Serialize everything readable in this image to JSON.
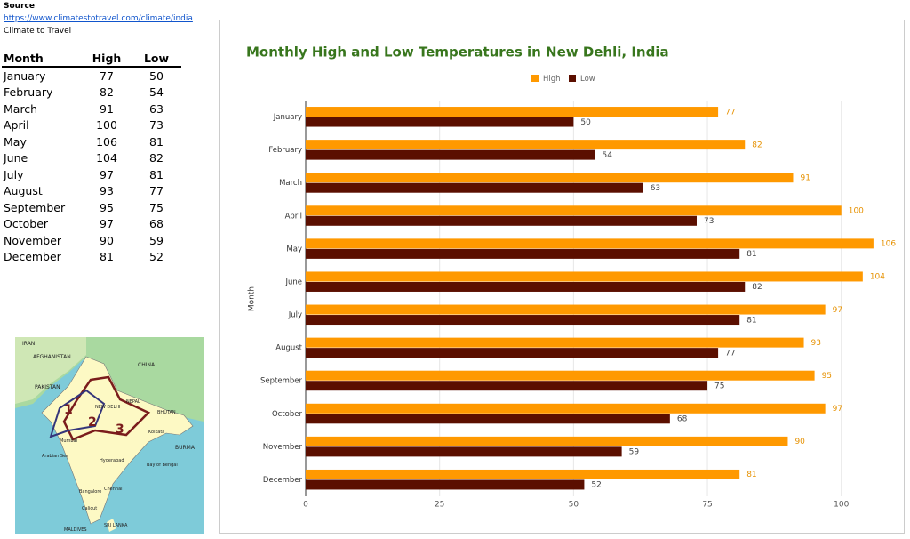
{
  "source": {
    "heading": "Source",
    "url": "https://www.climatestotravel.com/climate/india",
    "site": "Climate to Travel"
  },
  "table": {
    "header": [
      "Month",
      "High",
      "Low"
    ],
    "rows": [
      [
        "January",
        "77",
        "50"
      ],
      [
        "February",
        "82",
        "54"
      ],
      [
        "March",
        "91",
        "63"
      ],
      [
        "April",
        "100",
        "73"
      ],
      [
        "May",
        "106",
        "81"
      ],
      [
        "June",
        "104",
        "82"
      ],
      [
        "July",
        "97",
        "81"
      ],
      [
        "August",
        "93",
        "77"
      ],
      [
        "September",
        "95",
        "75"
      ],
      [
        "October",
        "97",
        "68"
      ],
      [
        "November",
        "90",
        "59"
      ],
      [
        "December",
        "81",
        "52"
      ]
    ]
  },
  "map": {
    "labels": [
      "IRAN",
      "AFGHANISTAN",
      "PAKISTAN",
      "CHINA",
      "NEW DELHI",
      "NEPAL",
      "BHUTAN",
      "BURMA",
      "Mumbai",
      "Kolkata",
      "Hyderabad",
      "Bangalore",
      "Chennai",
      "Calicut",
      "Arabian Sea",
      "Bay of Bengal",
      "SRI LANKA",
      "MALDIVES",
      "1",
      "2",
      "3"
    ]
  },
  "chart_data": {
    "type": "hbar",
    "title": "Monthly High and Low Temperatures in New Dehli, India",
    "y_label": "Month",
    "categories": [
      "January",
      "February",
      "March",
      "April",
      "May",
      "June",
      "July",
      "August",
      "September",
      "October",
      "November",
      "December"
    ],
    "series": [
      {
        "name": "High",
        "color": "#ff9900",
        "values": [
          77,
          82,
          91,
          100,
          106,
          104,
          97,
          93,
          95,
          97,
          90,
          81
        ]
      },
      {
        "name": "Low",
        "color": "#5b0f00",
        "values": [
          50,
          54,
          63,
          73,
          81,
          82,
          81,
          77,
          75,
          68,
          59,
          52
        ]
      }
    ],
    "xlim": [
      0,
      110
    ],
    "xticks": [
      0,
      25,
      50,
      75,
      100
    ],
    "grid": true,
    "legend": "top"
  }
}
